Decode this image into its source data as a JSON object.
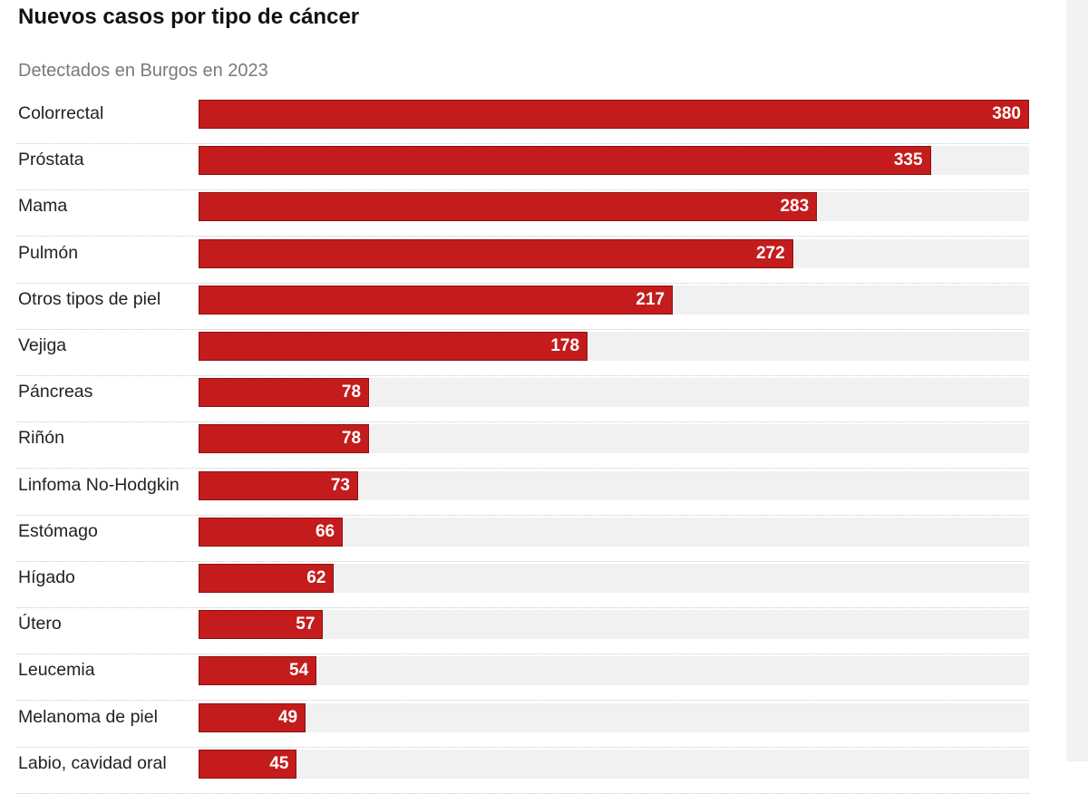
{
  "chart_data": {
    "type": "bar",
    "orientation": "horizontal",
    "title": "Nuevos casos por tipo de cáncer",
    "subtitle": "Detectados en Burgos en 2023",
    "categories": [
      "Colorrectal",
      "Próstata",
      "Mama",
      "Pulmón",
      "Otros tipos de piel",
      "Vejiga",
      "Páncreas",
      "Riñón",
      "Linfoma No-Hodgkin",
      "Estómago",
      "Hígado",
      "Útero",
      "Leucemia",
      "Melanoma de piel",
      "Labio, cavidad oral"
    ],
    "values": [
      380,
      335,
      283,
      272,
      217,
      178,
      78,
      78,
      73,
      66,
      62,
      57,
      54,
      49,
      45
    ],
    "xlim": [
      0,
      380
    ],
    "bar_color": "#c41c1c",
    "track_color": "#f1f1f1",
    "value_label_color": "#ffffff",
    "grid": false,
    "legend": "none"
  }
}
